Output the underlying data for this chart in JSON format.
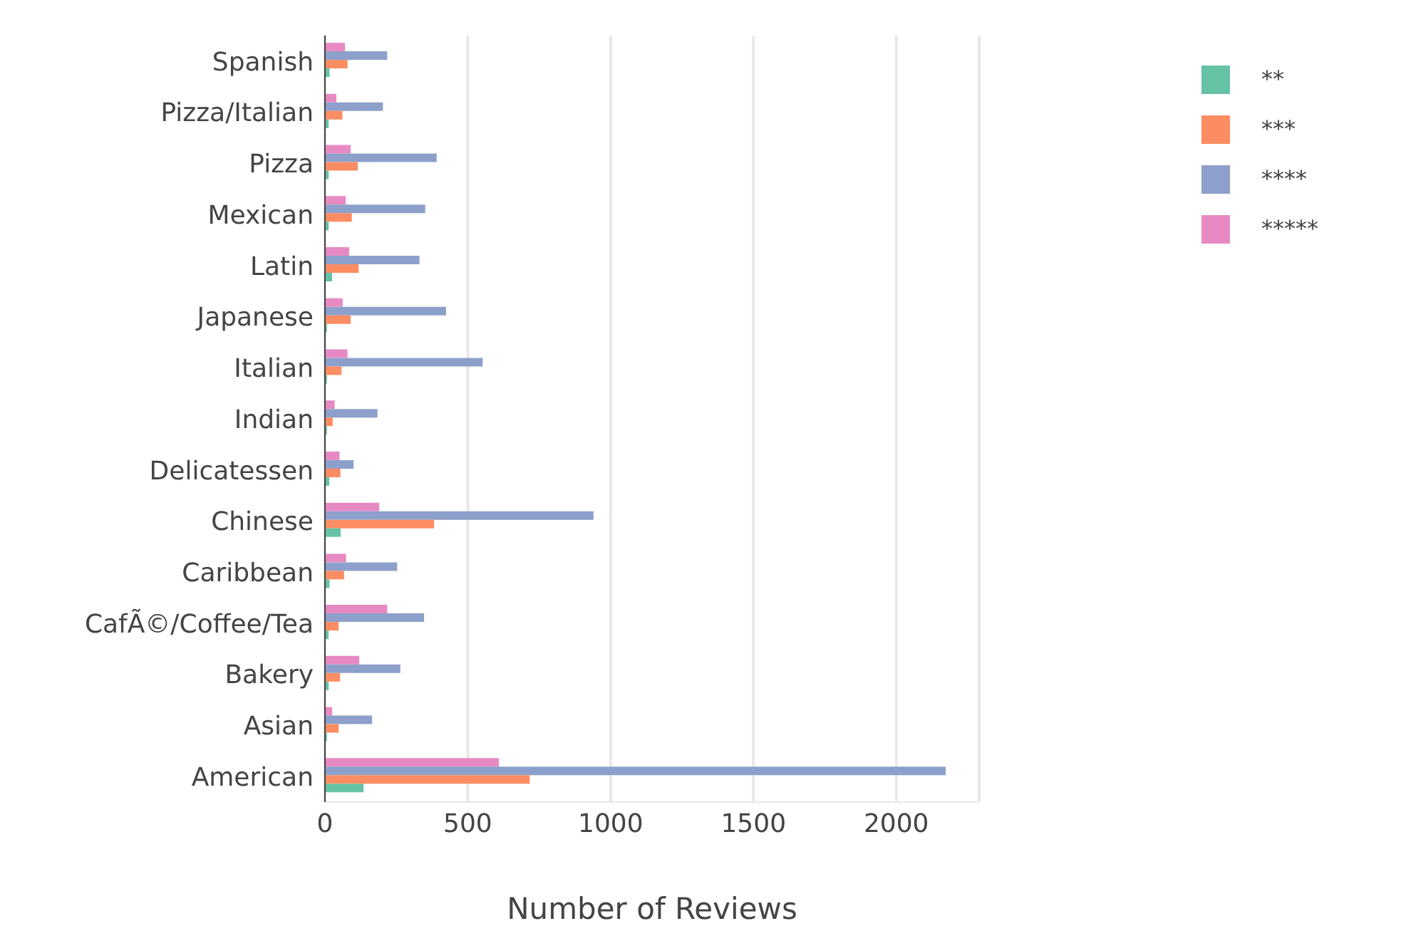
{
  "chart_data": {
    "type": "bar",
    "orientation": "horizontal",
    "xlabel": "Number of Reviews",
    "categories": [
      "Spanish",
      "Pizza/Italian",
      "Pizza",
      "Mexican",
      "Latin",
      "Japanese",
      "Italian",
      "Indian",
      "Delicatessen",
      "Chinese",
      "Caribbean",
      "CafÃ©/Coffee/Tea",
      "Bakery",
      "Asian",
      "American"
    ],
    "series": [
      {
        "name": "**",
        "color": "#66c2a5",
        "values": [
          16,
          13,
          13,
          13,
          25,
          7,
          7,
          7,
          15,
          55,
          16,
          13,
          13,
          7,
          135
        ]
      },
      {
        "name": "***",
        "color": "#fc8d62",
        "values": [
          79,
          61,
          115,
          94,
          118,
          90,
          58,
          27,
          54,
          382,
          67,
          48,
          53,
          48,
          717
        ]
      },
      {
        "name": "****",
        "color": "#8da0cb",
        "values": [
          218,
          203,
          391,
          351,
          331,
          424,
          552,
          184,
          100,
          940,
          253,
          347,
          264,
          165,
          2173
        ]
      },
      {
        "name": "*****",
        "color": "#e78ac3",
        "values": [
          70,
          40,
          90,
          73,
          85,
          62,
          79,
          34,
          51,
          190,
          74,
          218,
          120,
          25,
          609
        ]
      }
    ],
    "xlim": [
      0,
      2290
    ],
    "xticks": [
      0,
      500,
      1000,
      1500,
      2000
    ],
    "grid": "x",
    "legend": "top right"
  }
}
